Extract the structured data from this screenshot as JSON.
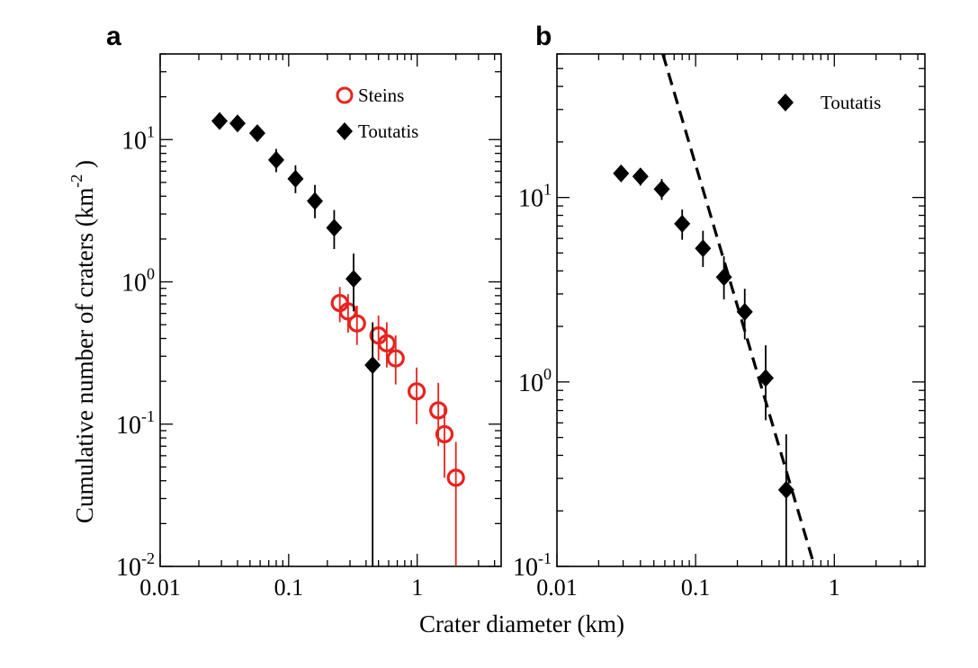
{
  "xlabel": "Crater diameter (km)",
  "chart_data": [
    {
      "panel": "a",
      "type": "scatter",
      "ylabel": "Cumulative number of craters (km^-2)",
      "ylabel_main": "Cumulative number of craters (km",
      "ylabel_sup": "-2",
      "ylabel_end": ")",
      "xscale": "log",
      "yscale": "log",
      "xlim": [
        0.01,
        4.5
      ],
      "ylim": [
        0.01,
        40
      ],
      "x_ticks": [
        {
          "value": 0.01,
          "label": "0.01"
        },
        {
          "value": 0.1,
          "label": "0.1"
        },
        {
          "value": 1,
          "label": "1"
        }
      ],
      "y_ticks": [
        {
          "value": 0.01,
          "base": "10",
          "exp": "-2"
        },
        {
          "value": 0.1,
          "base": "10",
          "exp": "-1"
        },
        {
          "value": 1,
          "base": "10",
          "exp": "0"
        },
        {
          "value": 10,
          "base": "10",
          "exp": "1"
        }
      ],
      "legend_position": "top-right",
      "series": [
        {
          "name": "Steins",
          "marker": "open-circle",
          "color": "#e8231f",
          "points": [
            {
              "x": 0.25,
              "y": 0.71,
              "ylo": 0.52,
              "yhi": 0.92
            },
            {
              "x": 0.29,
              "y": 0.62,
              "ylo": 0.44,
              "yhi": 0.82
            },
            {
              "x": 0.34,
              "y": 0.51,
              "ylo": 0.36,
              "yhi": 0.68
            },
            {
              "x": 0.5,
              "y": 0.42,
              "ylo": 0.28,
              "yhi": 0.58
            },
            {
              "x": 0.58,
              "y": 0.37,
              "ylo": 0.25,
              "yhi": 0.52
            },
            {
              "x": 0.68,
              "y": 0.29,
              "ylo": 0.19,
              "yhi": 0.42
            },
            {
              "x": 0.99,
              "y": 0.17,
              "ylo": 0.1,
              "yhi": 0.25
            },
            {
              "x": 1.46,
              "y": 0.125,
              "ylo": 0.07,
              "yhi": 0.195
            },
            {
              "x": 1.63,
              "y": 0.085,
              "ylo": 0.042,
              "yhi": 0.13
            },
            {
              "x": 2.0,
              "y": 0.042,
              "ylo": 0.01,
              "yhi": 0.075
            }
          ]
        },
        {
          "name": "Toutatis",
          "marker": "filled-diamond",
          "color": "#000000",
          "points": [
            {
              "x": 0.029,
              "y": 13.5,
              "ylo": 12.2,
              "yhi": 14.9
            },
            {
              "x": 0.04,
              "y": 13.0,
              "ylo": 11.6,
              "yhi": 14.4
            },
            {
              "x": 0.057,
              "y": 11.1,
              "ylo": 9.7,
              "yhi": 12.6
            },
            {
              "x": 0.08,
              "y": 7.2,
              "ylo": 5.9,
              "yhi": 8.6
            },
            {
              "x": 0.113,
              "y": 5.3,
              "ylo": 4.2,
              "yhi": 6.6
            },
            {
              "x": 0.16,
              "y": 3.7,
              "ylo": 2.8,
              "yhi": 4.8
            },
            {
              "x": 0.226,
              "y": 2.4,
              "ylo": 1.7,
              "yhi": 3.2
            },
            {
              "x": 0.32,
              "y": 1.05,
              "ylo": 0.62,
              "yhi": 1.58
            },
            {
              "x": 0.45,
              "y": 0.26,
              "ylo": 0.01,
              "yhi": 0.52
            }
          ]
        }
      ]
    },
    {
      "panel": "b",
      "type": "scatter",
      "xscale": "log",
      "yscale": "log",
      "xlim": [
        0.01,
        4.5
      ],
      "ylim": [
        0.1,
        60
      ],
      "x_ticks": [
        {
          "value": 0.01,
          "label": "0.01"
        },
        {
          "value": 0.1,
          "label": "0.1"
        },
        {
          "value": 1,
          "label": "1"
        }
      ],
      "y_ticks": [
        {
          "value": 0.1,
          "base": "10",
          "exp": "-1"
        },
        {
          "value": 1,
          "base": "10",
          "exp": "0"
        },
        {
          "value": 10,
          "base": "10",
          "exp": "1"
        }
      ],
      "legend_position": "top-right",
      "series": [
        {
          "name": "Toutatis",
          "marker": "filled-diamond",
          "color": "#000000",
          "points": [
            {
              "x": 0.029,
              "y": 13.5,
              "ylo": 12.2,
              "yhi": 14.9
            },
            {
              "x": 0.04,
              "y": 13.0,
              "ylo": 11.6,
              "yhi": 14.4
            },
            {
              "x": 0.057,
              "y": 11.1,
              "ylo": 9.7,
              "yhi": 12.6
            },
            {
              "x": 0.08,
              "y": 7.2,
              "ylo": 5.9,
              "yhi": 8.6
            },
            {
              "x": 0.113,
              "y": 5.3,
              "ylo": 4.2,
              "yhi": 6.6
            },
            {
              "x": 0.16,
              "y": 3.7,
              "ylo": 2.8,
              "yhi": 4.8
            },
            {
              "x": 0.226,
              "y": 2.4,
              "ylo": 1.7,
              "yhi": 3.2
            },
            {
              "x": 0.32,
              "y": 1.05,
              "ylo": 0.62,
              "yhi": 1.58
            },
            {
              "x": 0.45,
              "y": 0.26,
              "ylo": 0.1,
              "yhi": 0.52
            }
          ]
        }
      ],
      "fit_line": {
        "style": "dashed",
        "color": "#000000",
        "points": [
          {
            "x": 0.058,
            "y": 60
          },
          {
            "x": 0.72,
            "y": 0.1
          }
        ]
      }
    }
  ]
}
